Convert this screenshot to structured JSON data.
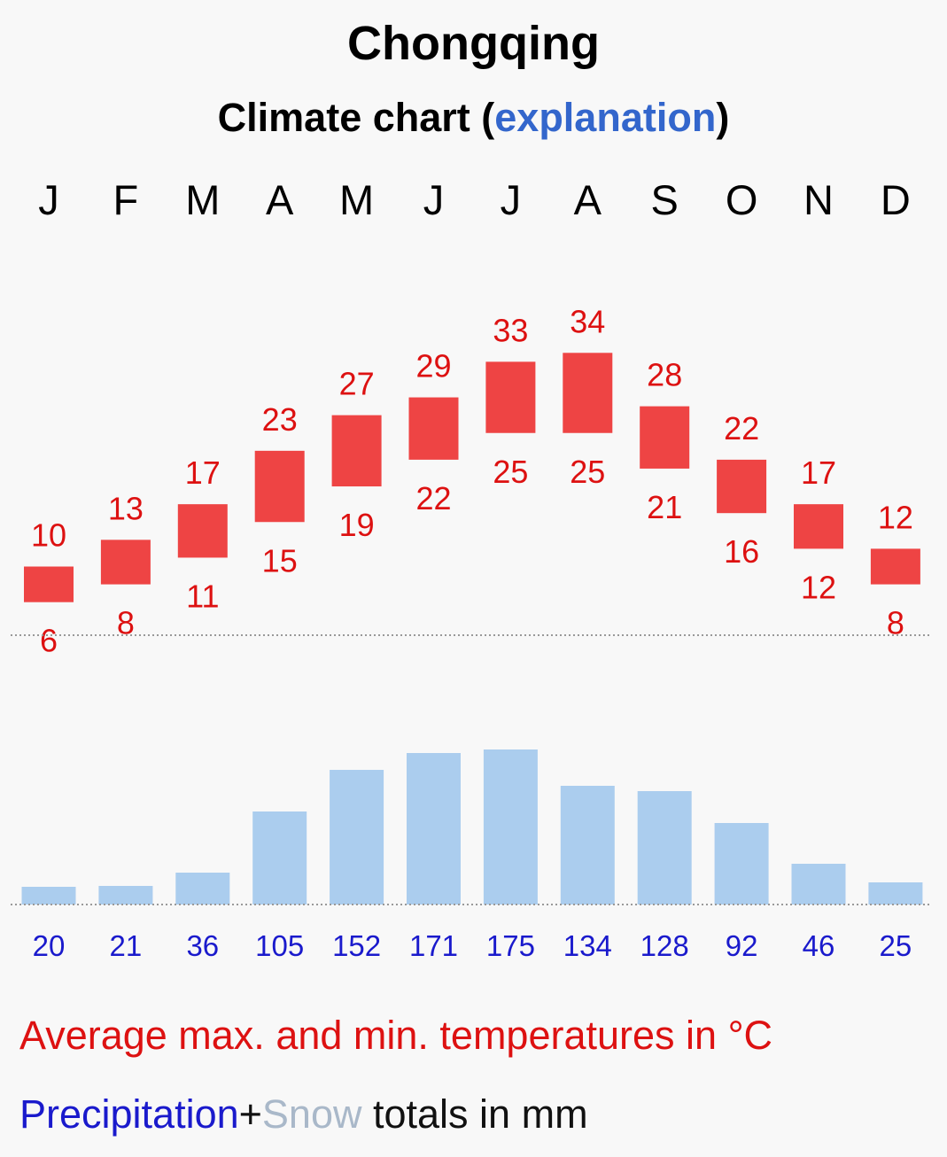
{
  "title": "Chongqing",
  "subtitle": {
    "prefix": "Climate chart (",
    "link": "explanation",
    "suffix": ")"
  },
  "legend": {
    "temperature": "Average max. and min. temperatures in °C",
    "precip_word": "Precipitation",
    "plus": "+",
    "snow_word": "Snow",
    "totals": " totals in mm"
  },
  "colors": {
    "temp_bar": "#ee4444",
    "temp_text": "#dd1111",
    "precip_bar": "#abcdee",
    "precip_text": "#1a1acc",
    "link": "#3366cc"
  },
  "chart_data": {
    "type": "bar",
    "title": "Chongqing",
    "subtitle": "Climate chart (explanation)",
    "categories": [
      "J",
      "F",
      "M",
      "A",
      "M",
      "J",
      "J",
      "A",
      "S",
      "O",
      "N",
      "D"
    ],
    "series": [
      {
        "name": "Average max. temperature (°C)",
        "values": [
          10,
          13,
          17,
          23,
          27,
          29,
          33,
          34,
          28,
          22,
          17,
          12
        ]
      },
      {
        "name": "Average min. temperature (°C)",
        "values": [
          6,
          8,
          11,
          15,
          19,
          22,
          25,
          25,
          21,
          16,
          12,
          8
        ]
      },
      {
        "name": "Precipitation totals (mm)",
        "values": [
          20,
          21,
          36,
          105,
          152,
          171,
          175,
          134,
          128,
          92,
          46,
          25
        ]
      }
    ]
  }
}
